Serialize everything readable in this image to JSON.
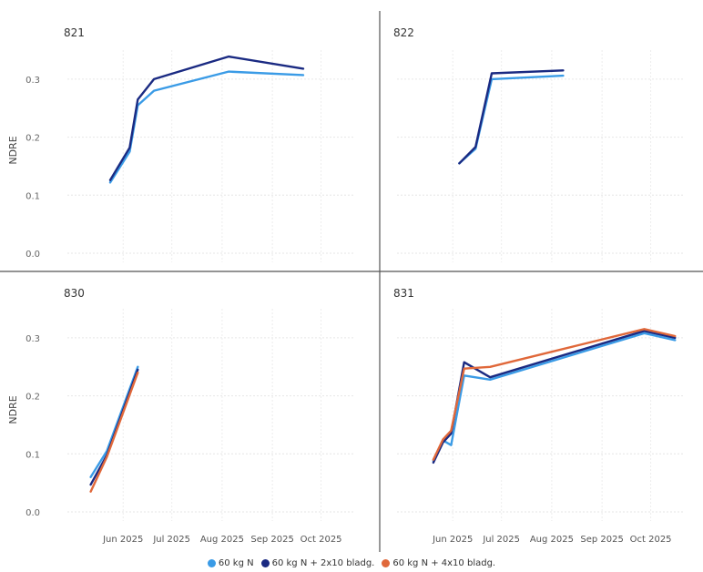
{
  "chart_data": {
    "type": "line",
    "y_axis_label": "NDRE",
    "y_ticks": [
      "0.0",
      "0.1",
      "0.2",
      "0.3"
    ],
    "x_ticks": [
      "Jun 2025",
      "Jul 2025",
      "Aug 2025",
      "Sep 2025",
      "Oct 2025"
    ],
    "ylim": [
      0,
      0.35
    ],
    "grid": true,
    "legend_position": "bottom",
    "legend": [
      {
        "name": "60 kg N",
        "color": "#3a9be6"
      },
      {
        "name": "60 kg N + 2x10 bladg.",
        "color": "#1a2a82"
      },
      {
        "name": "60 kg N + 4x10 bladg.",
        "color": "#e0683a"
      }
    ],
    "panels": [
      {
        "title": "821",
        "series": [
          {
            "name": "60 kg N",
            "color": "#3a9be6",
            "points": [
              [
                "2025-05-24",
                0.122
              ],
              [
                "2025-06-05",
                0.175
              ],
              [
                "2025-06-10",
                0.255
              ],
              [
                "2025-06-20",
                0.28
              ],
              [
                "2025-08-05",
                0.313
              ],
              [
                "2025-09-20",
                0.307
              ]
            ]
          },
          {
            "name": "60 kg N + 2x10 bladg.",
            "color": "#1a2a82",
            "points": [
              [
                "2025-05-24",
                0.126
              ],
              [
                "2025-06-05",
                0.182
              ],
              [
                "2025-06-10",
                0.265
              ],
              [
                "2025-06-20",
                0.3
              ],
              [
                "2025-08-05",
                0.339
              ],
              [
                "2025-09-20",
                0.318
              ]
            ]
          }
        ]
      },
      {
        "title": "822",
        "series": [
          {
            "name": "60 kg N",
            "color": "#3a9be6",
            "points": [
              [
                "2025-06-05",
                0.155
              ],
              [
                "2025-06-15",
                0.18
              ],
              [
                "2025-06-25",
                0.3
              ],
              [
                "2025-08-08",
                0.306
              ]
            ]
          },
          {
            "name": "60 kg N + 2x10 bladg.",
            "color": "#1a2a82",
            "points": [
              [
                "2025-06-05",
                0.155
              ],
              [
                "2025-06-15",
                0.183
              ],
              [
                "2025-06-25",
                0.31
              ],
              [
                "2025-08-08",
                0.315
              ]
            ]
          }
        ]
      },
      {
        "title": "830",
        "series": [
          {
            "name": "60 kg N",
            "color": "#3a9be6",
            "points": [
              [
                "2025-05-12",
                0.06
              ],
              [
                "2025-05-22",
                0.105
              ],
              [
                "2025-06-10",
                0.25
              ]
            ]
          },
          {
            "name": "60 kg N + 2x10 bladg.",
            "color": "#1a2a82",
            "points": [
              [
                "2025-05-12",
                0.047
              ],
              [
                "2025-05-22",
                0.098
              ],
              [
                "2025-06-10",
                0.245
              ]
            ]
          },
          {
            "name": "60 kg N + 4x10 bladg.",
            "color": "#e0683a",
            "points": [
              [
                "2025-05-12",
                0.035
              ],
              [
                "2025-05-22",
                0.095
              ],
              [
                "2025-06-10",
                0.24
              ]
            ]
          }
        ]
      },
      {
        "title": "831",
        "series": [
          {
            "name": "60 kg N",
            "color": "#3a9be6",
            "points": [
              [
                "2025-05-20",
                0.088
              ],
              [
                "2025-05-26",
                0.123
              ],
              [
                "2025-05-31",
                0.115
              ],
              [
                "2025-06-08",
                0.235
              ],
              [
                "2025-06-24",
                0.228
              ],
              [
                "2025-09-27",
                0.308
              ],
              [
                "2025-10-16",
                0.296
              ]
            ]
          },
          {
            "name": "60 kg N + 2x10 bladg.",
            "color": "#1a2a82",
            "points": [
              [
                "2025-05-20",
                0.085
              ],
              [
                "2025-05-26",
                0.12
              ],
              [
                "2025-05-31",
                0.135
              ],
              [
                "2025-06-08",
                0.258
              ],
              [
                "2025-06-24",
                0.232
              ],
              [
                "2025-09-27",
                0.312
              ],
              [
                "2025-10-16",
                0.3
              ]
            ]
          },
          {
            "name": "60 kg N + 4x10 bladg.",
            "color": "#e0683a",
            "points": [
              [
                "2025-05-20",
                0.09
              ],
              [
                "2025-05-26",
                0.125
              ],
              [
                "2025-05-31",
                0.14
              ],
              [
                "2025-06-08",
                0.247
              ],
              [
                "2025-06-24",
                0.25
              ],
              [
                "2025-09-27",
                0.315
              ],
              [
                "2025-10-16",
                0.303
              ]
            ]
          }
        ]
      }
    ]
  }
}
